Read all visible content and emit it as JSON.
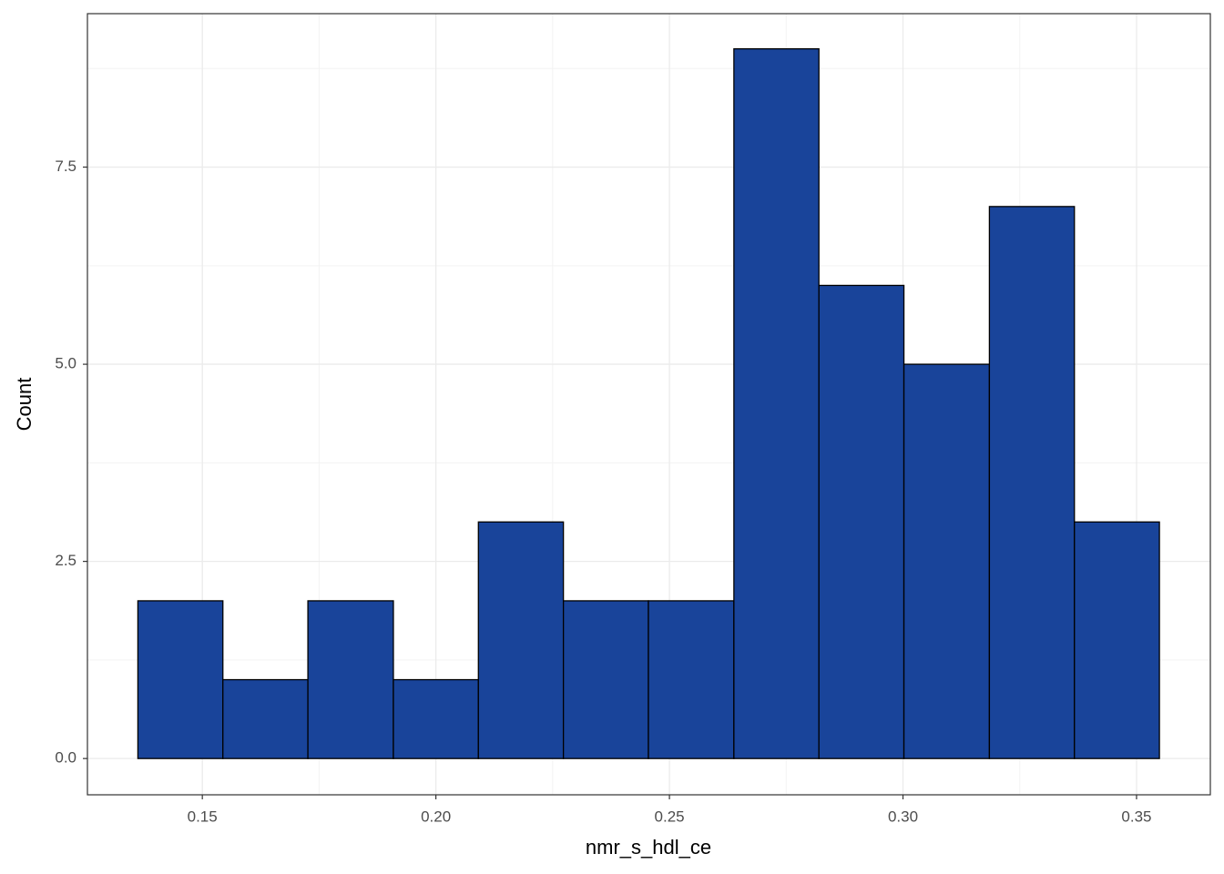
{
  "chart_data": {
    "type": "histogram",
    "x_label": "nmr_s_hdl_ce",
    "y_label": "Count",
    "bins": [
      0.1362,
      0.1544,
      0.1726,
      0.1909,
      0.2091,
      0.2273,
      0.2455,
      0.2638,
      0.282,
      0.3002,
      0.3185,
      0.3367,
      0.3549
    ],
    "values": [
      2,
      1,
      2,
      1,
      3,
      2,
      2,
      9,
      6,
      5,
      7,
      3
    ],
    "color": "#19449a",
    "xlim": [
      0.1254,
      0.3658
    ],
    "ylim": [
      -0.46,
      9.446
    ],
    "xticks": [
      0.15,
      {
        "value": 0.2,
        "label": "0.20"
      },
      0.25,
      {
        "value": 0.3,
        "label": "0.30"
      },
      0.35
    ],
    "yticks": [
      {
        "value": 0,
        "label": "0.0"
      },
      2.5,
      {
        "value": 5,
        "label": "5.0"
      },
      7.5
    ],
    "grid": true
  }
}
